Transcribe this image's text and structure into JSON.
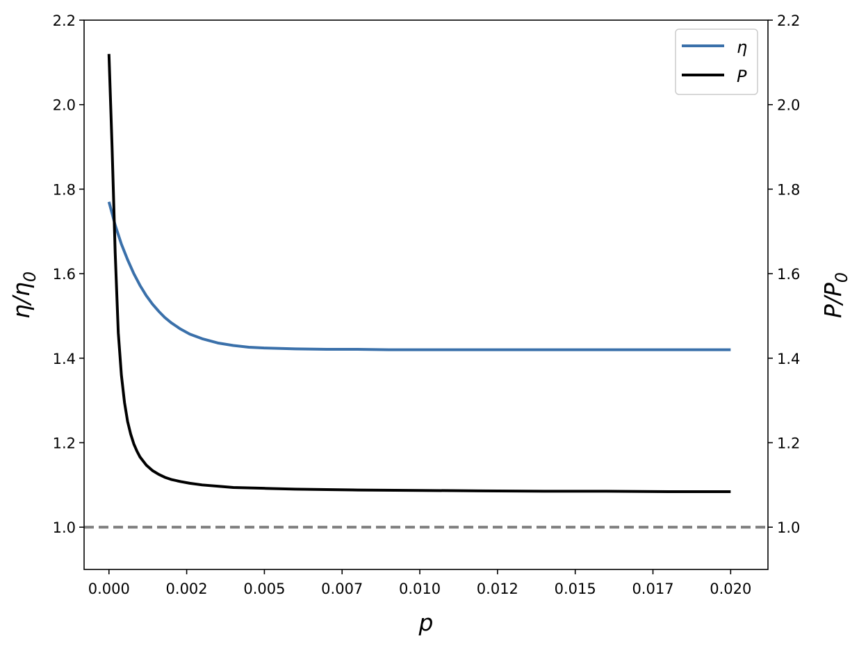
{
  "chart_data": {
    "type": "line",
    "title": "",
    "xlabel": "p",
    "ylabel_left": {
      "base": "η/η",
      "subscript": "0"
    },
    "ylabel_right": {
      "base": "P/P",
      "subscript": "0"
    },
    "xlim": [
      -0.0008,
      0.0212
    ],
    "ylim": [
      0.9,
      2.2
    ],
    "x_ticks": [
      0.0,
      0.0025,
      0.005,
      0.0075,
      0.01,
      0.0125,
      0.015,
      0.0175,
      0.02
    ],
    "x_tick_labels": [
      "0.000",
      "0.002",
      "0.005",
      "0.007",
      "0.010",
      "0.012",
      "0.015",
      "0.017",
      "0.020"
    ],
    "y_ticks": [
      1.0,
      1.2,
      1.4,
      1.6,
      1.8,
      2.0,
      2.2
    ],
    "y_tick_labels": [
      "1.0",
      "1.2",
      "1.4",
      "1.6",
      "1.8",
      "2.0",
      "2.2"
    ],
    "y_ticks_right": [
      1.0,
      1.2,
      1.4,
      1.6,
      1.8,
      2.0,
      2.2
    ],
    "y_tick_labels_right": [
      "1.0",
      "1.2",
      "1.4",
      "1.6",
      "1.8",
      "2.0",
      "2.2"
    ],
    "grid": false,
    "legend": {
      "placement": "upper-right",
      "entries": [
        {
          "label": "η",
          "color": "#3a70aa"
        },
        {
          "label": "P",
          "color": "#000000"
        }
      ]
    },
    "reference_line": {
      "y": 1.0,
      "color": "#808080",
      "style": "dashed"
    },
    "series": [
      {
        "name": "η",
        "color": "#3a70aa",
        "x": [
          0.0,
          0.0002,
          0.0004,
          0.0006,
          0.0008,
          0.001,
          0.0012,
          0.0014,
          0.0016,
          0.0018,
          0.002,
          0.0023,
          0.0026,
          0.003,
          0.0035,
          0.004,
          0.0045,
          0.005,
          0.006,
          0.007,
          0.008,
          0.009,
          0.01,
          0.011,
          0.012,
          0.013,
          0.014,
          0.015,
          0.016,
          0.017,
          0.018,
          0.019,
          0.02
        ],
        "y": [
          1.77,
          1.715,
          1.67,
          1.633,
          1.6,
          1.572,
          1.548,
          1.528,
          1.511,
          1.496,
          1.484,
          1.469,
          1.457,
          1.446,
          1.436,
          1.43,
          1.426,
          1.424,
          1.422,
          1.421,
          1.421,
          1.42,
          1.42,
          1.42,
          1.42,
          1.42,
          1.42,
          1.42,
          1.42,
          1.42,
          1.42,
          1.42,
          1.42
        ]
      },
      {
        "name": "P",
        "color": "#000000",
        "x": [
          0.0,
          0.0001,
          0.0002,
          0.0003,
          0.0004,
          0.0005,
          0.0006,
          0.0007,
          0.0008,
          0.0009,
          0.001,
          0.0012,
          0.0014,
          0.0016,
          0.0018,
          0.002,
          0.0023,
          0.0026,
          0.003,
          0.0035,
          0.004,
          0.005,
          0.006,
          0.007,
          0.008,
          0.01,
          0.012,
          0.014,
          0.016,
          0.018,
          0.02
        ],
        "y": [
          2.12,
          1.9,
          1.65,
          1.46,
          1.36,
          1.295,
          1.25,
          1.22,
          1.197,
          1.18,
          1.166,
          1.147,
          1.134,
          1.125,
          1.118,
          1.113,
          1.108,
          1.104,
          1.1,
          1.097,
          1.094,
          1.092,
          1.09,
          1.089,
          1.088,
          1.087,
          1.086,
          1.085,
          1.085,
          1.084,
          1.084
        ]
      }
    ]
  }
}
